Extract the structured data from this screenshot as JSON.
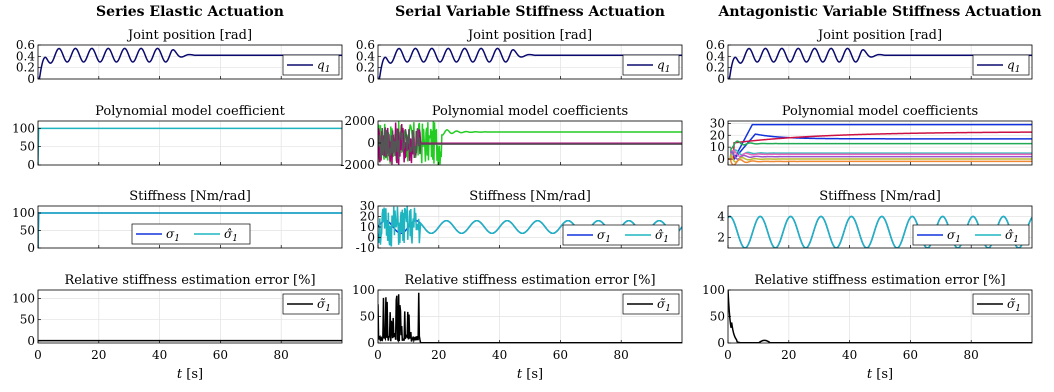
{
  "chart_data": [
    {
      "type": "line",
      "column": "Series Elastic Actuation",
      "title": "Joint position [rad]",
      "ylim": [
        0,
        0.6
      ],
      "yticks": [
        "0",
        "0.2",
        "0.4",
        "0.6"
      ],
      "xticks": [
        "0",
        "20",
        "40",
        "60",
        "80"
      ],
      "xlabel": "",
      "show_x_ticklabels": false,
      "legend": "right",
      "grid": true,
      "series": [
        {
          "name": "q1",
          "color": "#0a0a6e",
          "values": "decaying oscillation 0→0.42, peaks ≈0.55 until t≈45, then settles at 0.42"
        }
      ]
    },
    {
      "type": "line",
      "column": "Serial Variable Stiffness Actuation",
      "title": "Joint position [rad]",
      "ylim": [
        0,
        0.6
      ],
      "yticks": [
        "0",
        "0.2",
        "0.4",
        "0.6"
      ],
      "xticks": [
        "0",
        "20",
        "40",
        "60",
        "80"
      ],
      "xlabel": "",
      "show_x_ticklabels": false,
      "legend": "right",
      "grid": true,
      "series": [
        {
          "name": "q1",
          "color": "#0a0a6e",
          "values": "decaying oscillation 0→0.42, peaks ≈0.55 until t≈45, then settles at 0.42"
        }
      ]
    },
    {
      "type": "line",
      "column": "Antagonistic Variable Stiffness Actuation",
      "title": "Joint position [rad]",
      "ylim": [
        0,
        0.6
      ],
      "yticks": [
        "0",
        "0.2",
        "0.4",
        "0.6"
      ],
      "xticks": [
        "0",
        "20",
        "40",
        "60",
        "80"
      ],
      "xlabel": "",
      "show_x_ticklabels": false,
      "legend": "right",
      "grid": true,
      "series": [
        {
          "name": "q1",
          "color": "#0a0a6e",
          "values": "decaying oscillation 0→0.42, peaks ≈0.55 until t≈45, then settles at 0.42"
        }
      ]
    },
    {
      "type": "line",
      "title": "Polynomial model coefficient",
      "ylim": [
        0,
        120
      ],
      "yticks": [
        "0",
        "50",
        "100"
      ],
      "xticks": [
        "0",
        "20",
        "40",
        "60",
        "80"
      ],
      "show_x_ticklabels": false,
      "grid": true,
      "series": [
        {
          "color": "#1fb5c0",
          "values": "constant 100"
        }
      ]
    },
    {
      "type": "line",
      "title": "Polynomial model coefficients",
      "ylim": [
        -2000,
        2000
      ],
      "yticks": [
        "-2000",
        "0",
        "2000"
      ],
      "xticks": [
        "0",
        "20",
        "40",
        "60",
        "80"
      ],
      "show_x_ticklabels": false,
      "grid": true,
      "series": [
        {
          "color": "#22cc22",
          "values": "noisy until t≈21, settles ≈1000"
        },
        {
          "color": "#aa0077",
          "values": "noisy ±2000 until t≈14, then ≈0"
        },
        {
          "color": "#555555",
          "values": "≈-100"
        }
      ]
    },
    {
      "type": "line",
      "title": "Polynomial model coefficients",
      "ylim": [
        -5,
        32
      ],
      "yticks": [
        "0",
        "10",
        "20",
        "30"
      ],
      "xticks": [
        "0",
        "20",
        "40",
        "60",
        "80"
      ],
      "show_x_ticklabels": false,
      "grid": true,
      "series": [
        {
          "color": "#1133dd",
          "values": "rises to 29 at t≈8"
        },
        {
          "color": "#1133dd",
          "values": "rises to 21, settles 17"
        },
        {
          "color": "#cc1144",
          "values": "rises slowly to 23"
        },
        {
          "color": "#22aa55",
          "values": "≈13"
        },
        {
          "color": "#33bbbb",
          "values": "≈5"
        },
        {
          "color": "#ee66bb",
          "values": "≈4"
        },
        {
          "color": "#9955cc",
          "values": "≈2"
        },
        {
          "color": "#bbbb33",
          "values": "≈0"
        },
        {
          "color": "#ee8833",
          "values": "≈-2"
        }
      ]
    },
    {
      "type": "line",
      "title": "Stiffness [Nm/rad]",
      "ylim": [
        0,
        120
      ],
      "yticks": [
        "0",
        "50",
        "100"
      ],
      "xticks": [
        "0",
        "20",
        "40",
        "60",
        "80"
      ],
      "show_x_ticklabels": false,
      "legend": "bottom-center",
      "grid": true,
      "series": [
        {
          "name": "σ1",
          "color": "#1133dd",
          "values": "constant 100"
        },
        {
          "name": "σ̂1",
          "color": "#1fb5c0",
          "values": "constant 100"
        }
      ]
    },
    {
      "type": "line",
      "title": "Stiffness [Nm/rad]",
      "ylim": [
        -10,
        30
      ],
      "yticks": [
        "-10",
        "0",
        "10",
        "20",
        "30"
      ],
      "xticks": [
        "0",
        "20",
        "40",
        "60",
        "80"
      ],
      "show_x_ticklabels": false,
      "legend": "right",
      "grid": true,
      "series": [
        {
          "name": "σ1",
          "color": "#1133dd",
          "values": "sinusoid 10±6, period ≈10 s"
        },
        {
          "name": "σ̂1",
          "color": "#1fb5c0",
          "values": "noisy -10..30 until t≈14, then tracks σ1"
        }
      ]
    },
    {
      "type": "line",
      "title": "Stiffness [Nm/rad]",
      "ylim": [
        1,
        5
      ],
      "yticks": [
        "2",
        "4"
      ],
      "xticks": [
        "0",
        "20",
        "40",
        "60",
        "80"
      ],
      "show_x_ticklabels": false,
      "legend": "right",
      "grid": true,
      "series": [
        {
          "name": "σ1",
          "color": "#1133dd",
          "values": "sinusoid 2.5±1.5, period ≈10 s"
        },
        {
          "name": "σ̂1",
          "color": "#1fb5c0",
          "values": "tracks σ1"
        }
      ]
    },
    {
      "type": "line",
      "title": "Relative stiffness estimation error [%]",
      "ylim": [
        -5,
        120
      ],
      "yticks": [
        "0",
        "50",
        "100"
      ],
      "xticks": [
        "0",
        "20",
        "40",
        "60",
        "80"
      ],
      "xlabel": "t [s]",
      "legend": "top-right",
      "grid": true,
      "series": [
        {
          "name": "σ̃1",
          "color": "#000000",
          "values": "≈0"
        }
      ]
    },
    {
      "type": "line",
      "title": "Relative stiffness estimation error [%]",
      "ylim": [
        0,
        100
      ],
      "yticks": [
        "0",
        "50",
        "100"
      ],
      "xticks": [
        "0",
        "20",
        "40",
        "60",
        "80"
      ],
      "xlabel": "t [s]",
      "legend": "top-right",
      "grid": true,
      "series": [
        {
          "name": "σ̃1",
          "color": "#000000",
          "values": "spikes to 100 until t≈14, then ≈0"
        }
      ]
    },
    {
      "type": "line",
      "title": "Relative stiffness estimation error [%]",
      "ylim": [
        0,
        100
      ],
      "yticks": [
        "0",
        "50",
        "100"
      ],
      "xticks": [
        "0",
        "20",
        "40",
        "60",
        "80"
      ],
      "xlabel": "t [s]",
      "legend": "top-right",
      "grid": true,
      "series": [
        {
          "name": "σ̃1",
          "color": "#000000",
          "values": "starts 100, decays to ≈0 by t≈5, bump 5 at t≈12"
        }
      ]
    }
  ],
  "columns": [
    "Series Elastic Actuation",
    "Serial Variable Stiffness Actuation",
    "Antagonistic Variable Stiffness Actuation"
  ],
  "legend_labels": {
    "q1": "q",
    "sub1": "1",
    "sigma": "σ",
    "sigma_hat": "σ̂",
    "sigma_tilde": "σ̃"
  },
  "xlabel_text": {
    "t": "t",
    "unit": " [s]"
  }
}
